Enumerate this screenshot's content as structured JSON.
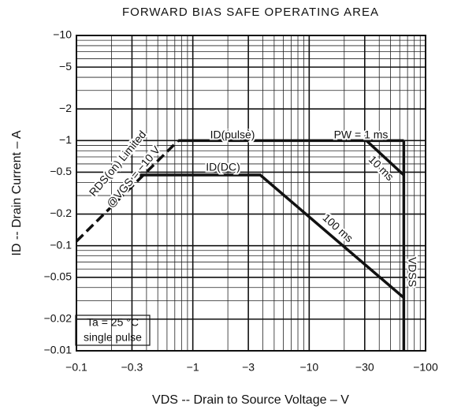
{
  "chart_data": {
    "type": "line",
    "title": "FORWARD BIAS SAFE OPERATING AREA",
    "x_label": "VDS -- Drain to Source Voltage – V",
    "y_label": "ID -- Drain Current – A",
    "log_scale": {
      "x": true,
      "y": true
    },
    "grid": true,
    "xlim": [
      -0.1,
      -100
    ],
    "ylim": [
      -0.01,
      -10
    ],
    "xticks": [
      {
        "value": -0.1,
        "label": "−0.1"
      },
      {
        "value": -0.3,
        "label": "−0.3"
      },
      {
        "value": -1,
        "label": "−1"
      },
      {
        "value": -3,
        "label": "−3"
      },
      {
        "value": -10,
        "label": "−10"
      },
      {
        "value": -30,
        "label": "−30"
      },
      {
        "value": -100,
        "label": "−100"
      }
    ],
    "yticks": [
      {
        "value": -10,
        "label": "−10"
      },
      {
        "value": -5,
        "label": "−5"
      },
      {
        "value": -2,
        "label": "−2"
      },
      {
        "value": -1,
        "label": "−1"
      },
      {
        "value": -0.5,
        "label": "−0.5"
      },
      {
        "value": -0.2,
        "label": "−0.2"
      },
      {
        "value": -0.1,
        "label": "−0.1"
      },
      {
        "value": -0.05,
        "label": "−0.05"
      },
      {
        "value": -0.02,
        "label": "−0.02"
      },
      {
        "value": -0.01,
        "label": "−0.01"
      }
    ],
    "series": [
      {
        "name": "RDS(on) Limited @VGS = −10 V",
        "color": "#111",
        "dashed": true,
        "x": [
          -0.1,
          -0.75
        ],
        "values": [
          -0.11,
          -1
        ]
      },
      {
        "name": "PW = 1 ms",
        "color": "#111",
        "x": [
          -0.75,
          -65
        ],
        "values": [
          -1,
          -1
        ]
      },
      {
        "name": "10 ms",
        "color": "#111",
        "x": [
          -31,
          -65
        ],
        "values": [
          -1,
          -0.47
        ]
      },
      {
        "name": "100 ms",
        "color": "#111",
        "x": [
          -0.35,
          -3.8,
          -65
        ],
        "values": [
          -0.47,
          -0.47,
          -0.032
        ]
      },
      {
        "name": "VDSS",
        "color": "#111",
        "x": [
          -65,
          -65
        ],
        "values": [
          -1,
          -0.01
        ]
      }
    ],
    "annotations": [
      "RDS(on) Limited",
      "@VGS = −10 V",
      "ID(pulse)",
      "PW = 1 ms",
      "10 ms",
      "ID(DC)",
      "100 ms",
      "VDSS",
      "Ta = 25 °C",
      "single pulse"
    ]
  }
}
